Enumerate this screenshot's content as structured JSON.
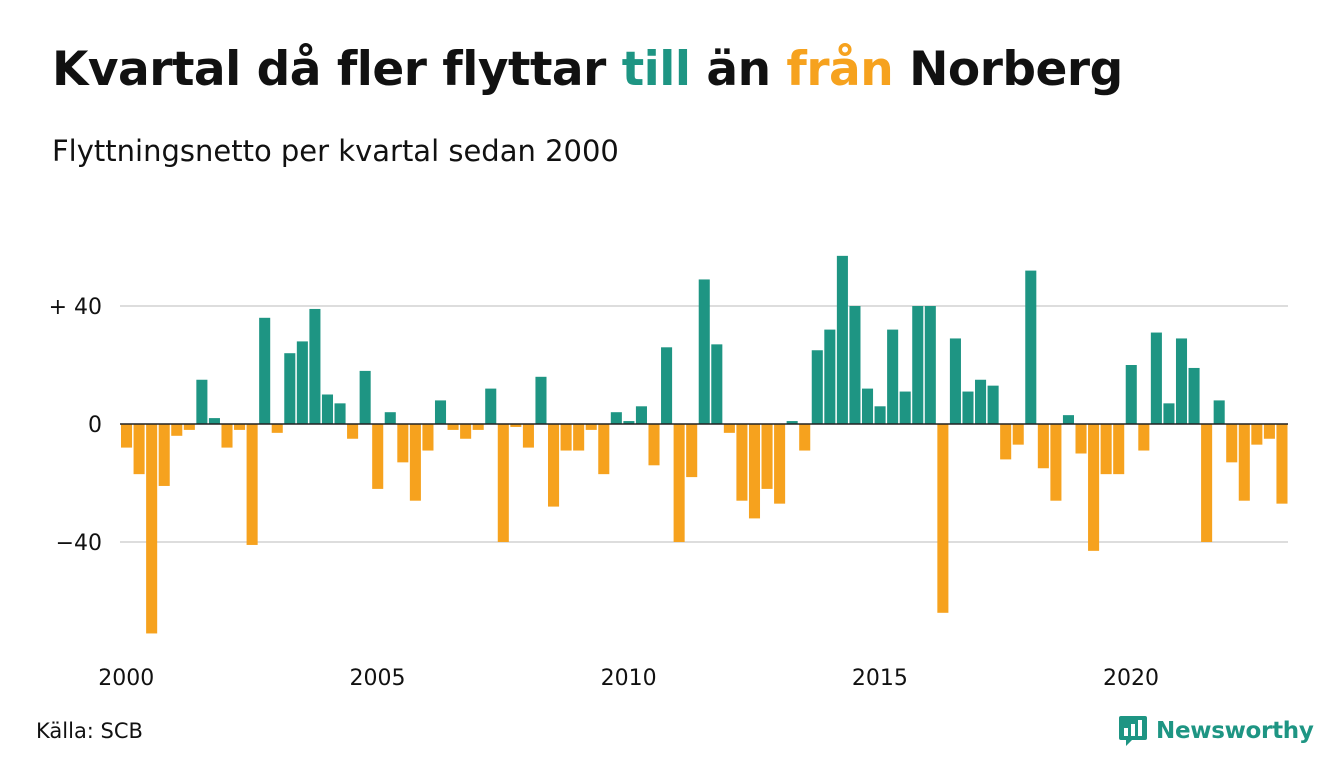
{
  "header": {
    "title_part1": "Kvartal då fler flyttar ",
    "title_till": "till",
    "title_part2": " än ",
    "title_fran": "från",
    "title_part3": " Norberg",
    "subtitle": "Flyttningsnetto per kvartal sedan 2000"
  },
  "footer": {
    "source": "Källa: SCB",
    "brand": "Newsworthy"
  },
  "colors": {
    "positive": "#1e9583",
    "negative": "#f6a21e",
    "gridline": "#dddddd",
    "zero_line": "#222222"
  },
  "chart_data": {
    "type": "bar",
    "title": "Kvartal då fler flyttar till än från Norberg",
    "subtitle": "Flyttningsnetto per kvartal sedan 2000",
    "xlabel": "",
    "ylabel": "",
    "ylim": [
      -72,
      60
    ],
    "yticks": [
      {
        "value": 40,
        "label": "+ 40"
      },
      {
        "value": 0,
        "label": "0"
      },
      {
        "value": -40,
        "label": "−40"
      }
    ],
    "xticks": [
      {
        "index": 0,
        "label": "2000"
      },
      {
        "index": 20,
        "label": "2005"
      },
      {
        "index": 40,
        "label": "2010"
      },
      {
        "index": 60,
        "label": "2015"
      },
      {
        "index": 80,
        "label": "2020"
      }
    ],
    "grid": true,
    "start": "2000 Q1",
    "values": [
      -8,
      -17,
      -71,
      -21,
      -4,
      -2,
      15,
      2,
      -8,
      -2,
      -41,
      36,
      -3,
      24,
      28,
      39,
      10,
      7,
      -5,
      18,
      -22,
      4,
      -13,
      -26,
      -9,
      8,
      -2,
      -5,
      -2,
      12,
      -40,
      -1,
      -8,
      16,
      -28,
      -9,
      -9,
      -2,
      -17,
      4,
      1,
      6,
      -14,
      26,
      -40,
      -18,
      49,
      27,
      -3,
      -26,
      -32,
      -22,
      -27,
      1,
      -9,
      25,
      32,
      57,
      40,
      12,
      6,
      32,
      11,
      40,
      40,
      -64,
      29,
      11,
      15,
      13,
      -12,
      -7,
      52,
      -15,
      -26,
      3,
      -10,
      -43,
      -17,
      -17,
      20,
      -9,
      31,
      7,
      29,
      19,
      -40,
      8,
      -13,
      -26,
      -7,
      -5,
      -27
    ]
  }
}
